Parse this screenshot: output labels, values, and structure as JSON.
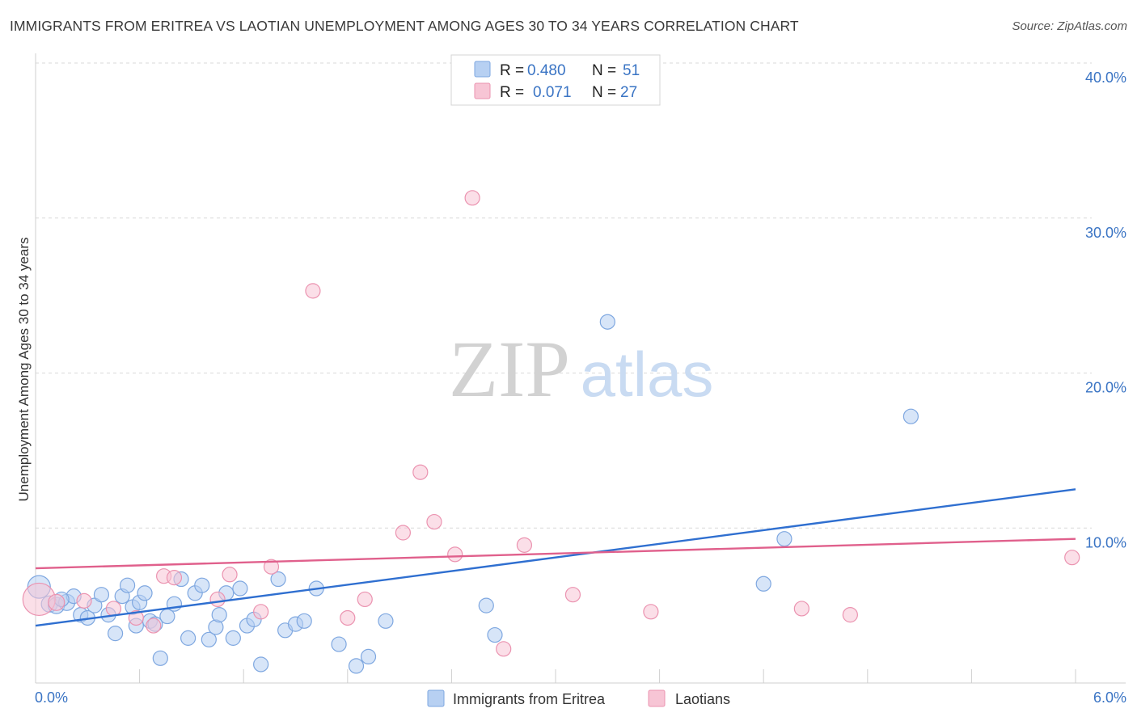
{
  "header": {
    "title": "IMMIGRANTS FROM ERITREA VS LAOTIAN UNEMPLOYMENT AMONG AGES 30 TO 34 YEARS CORRELATION CHART",
    "source": "Source: ZipAtlas.com"
  },
  "watermark": {
    "zip": "ZIP",
    "atlas": "atlas"
  },
  "colors": {
    "blue_fill": "#b7d0f2",
    "blue_stroke": "#7ea7e0",
    "blue_line": "#2f6fd0",
    "pink_fill": "#f7c5d5",
    "pink_stroke": "#eb93b0",
    "pink_line": "#e0608c",
    "tick_text": "#3a74c4",
    "grid": "#d9d9d9"
  },
  "legend": {
    "rows": [
      {
        "r_label": "R = ",
        "r_value": "0.480",
        "n_label": "N = ",
        "n_value": "51",
        "color": "blue"
      },
      {
        "r_label": "R = ",
        "r_value": "0.071",
        "n_label": "N = ",
        "n_value": "27",
        "color": "pink"
      }
    ]
  },
  "bottom_legend": [
    "Immigrants from Eritrea",
    "Laotians"
  ],
  "chart_data": {
    "type": "scatter",
    "title": "IMMIGRANTS FROM ERITREA VS LAOTIAN UNEMPLOYMENT AMONG AGES 30 TO 34 YEARS CORRELATION CHART",
    "xlabel": "",
    "ylabel": "Unemployment Among Ages 30 to 34 years",
    "xlim": [
      0,
      6
    ],
    "ylim": [
      0,
      40
    ],
    "x_tick_labels": [
      "0.0%",
      "6.0%"
    ],
    "y_ticks": [
      10,
      20,
      30,
      40
    ],
    "y_tick_labels": [
      "10.0%",
      "20.0%",
      "30.0%",
      "40.0%"
    ],
    "grid": true,
    "legend_position": "top-center",
    "series": [
      {
        "name": "Immigrants from Eritrea",
        "color": "blue",
        "trend": {
          "x": [
            0.0,
            6.0
          ],
          "y": [
            3.7,
            12.5
          ]
        },
        "points": [
          {
            "x": 0.02,
            "y": 6.2,
            "size": 14
          },
          {
            "x": 0.08,
            "y": 5.1,
            "size": 10
          },
          {
            "x": 0.12,
            "y": 5.0,
            "size": 10
          },
          {
            "x": 0.18,
            "y": 5.2,
            "size": 10
          },
          {
            "x": 0.22,
            "y": 5.6,
            "size": 9
          },
          {
            "x": 0.26,
            "y": 4.4,
            "size": 9
          },
          {
            "x": 0.3,
            "y": 4.2,
            "size": 9
          },
          {
            "x": 0.34,
            "y": 5.0,
            "size": 9
          },
          {
            "x": 0.38,
            "y": 5.7,
            "size": 9
          },
          {
            "x": 0.42,
            "y": 4.4,
            "size": 9
          },
          {
            "x": 0.46,
            "y": 3.2,
            "size": 9
          },
          {
            "x": 0.5,
            "y": 5.6,
            "size": 9
          },
          {
            "x": 0.53,
            "y": 6.3,
            "size": 9
          },
          {
            "x": 0.56,
            "y": 4.9,
            "size": 9
          },
          {
            "x": 0.6,
            "y": 5.2,
            "size": 9
          },
          {
            "x": 0.63,
            "y": 5.8,
            "size": 9
          },
          {
            "x": 0.66,
            "y": 4.0,
            "size": 9
          },
          {
            "x": 0.69,
            "y": 3.8,
            "size": 9
          },
          {
            "x": 0.72,
            "y": 1.6,
            "size": 9
          },
          {
            "x": 0.76,
            "y": 4.3,
            "size": 9
          },
          {
            "x": 0.8,
            "y": 5.1,
            "size": 9
          },
          {
            "x": 0.84,
            "y": 6.7,
            "size": 9
          },
          {
            "x": 0.88,
            "y": 2.9,
            "size": 9
          },
          {
            "x": 0.92,
            "y": 5.8,
            "size": 9
          },
          {
            "x": 0.96,
            "y": 6.3,
            "size": 9
          },
          {
            "x": 1.0,
            "y": 2.8,
            "size": 9
          },
          {
            "x": 1.04,
            "y": 3.6,
            "size": 9
          },
          {
            "x": 1.06,
            "y": 4.4,
            "size": 9
          },
          {
            "x": 1.1,
            "y": 5.8,
            "size": 9
          },
          {
            "x": 1.14,
            "y": 2.9,
            "size": 9
          },
          {
            "x": 1.18,
            "y": 6.1,
            "size": 9
          },
          {
            "x": 1.22,
            "y": 3.7,
            "size": 9
          },
          {
            "x": 1.26,
            "y": 4.1,
            "size": 9
          },
          {
            "x": 1.3,
            "y": 1.2,
            "size": 9
          },
          {
            "x": 1.4,
            "y": 6.7,
            "size": 9
          },
          {
            "x": 1.44,
            "y": 3.4,
            "size": 9
          },
          {
            "x": 1.5,
            "y": 3.8,
            "size": 9
          },
          {
            "x": 1.55,
            "y": 4.0,
            "size": 9
          },
          {
            "x": 1.62,
            "y": 6.1,
            "size": 9
          },
          {
            "x": 1.75,
            "y": 2.5,
            "size": 9
          },
          {
            "x": 1.85,
            "y": 1.1,
            "size": 9
          },
          {
            "x": 1.92,
            "y": 1.7,
            "size": 9
          },
          {
            "x": 2.02,
            "y": 4.0,
            "size": 9
          },
          {
            "x": 2.6,
            "y": 5.0,
            "size": 9
          },
          {
            "x": 2.65,
            "y": 3.1,
            "size": 9
          },
          {
            "x": 3.3,
            "y": 23.3,
            "size": 9
          },
          {
            "x": 4.2,
            "y": 6.4,
            "size": 9
          },
          {
            "x": 4.32,
            "y": 9.3,
            "size": 9
          },
          {
            "x": 5.05,
            "y": 17.2,
            "size": 9
          },
          {
            "x": 0.15,
            "y": 5.4,
            "size": 9
          },
          {
            "x": 0.58,
            "y": 3.7,
            "size": 9
          }
        ]
      },
      {
        "name": "Laotians",
        "color": "pink",
        "trend": {
          "x": [
            0.0,
            6.0
          ],
          "y": [
            7.4,
            9.3
          ]
        },
        "points": [
          {
            "x": 0.02,
            "y": 5.4,
            "size": 20
          },
          {
            "x": 0.12,
            "y": 5.2,
            "size": 10
          },
          {
            "x": 0.28,
            "y": 5.3,
            "size": 9
          },
          {
            "x": 0.45,
            "y": 4.8,
            "size": 9
          },
          {
            "x": 0.58,
            "y": 4.2,
            "size": 9
          },
          {
            "x": 0.68,
            "y": 3.7,
            "size": 9
          },
          {
            "x": 0.74,
            "y": 6.9,
            "size": 9
          },
          {
            "x": 0.8,
            "y": 6.8,
            "size": 9
          },
          {
            "x": 1.05,
            "y": 5.4,
            "size": 9
          },
          {
            "x": 1.12,
            "y": 7.0,
            "size": 9
          },
          {
            "x": 1.3,
            "y": 4.6,
            "size": 9
          },
          {
            "x": 1.36,
            "y": 7.5,
            "size": 9
          },
          {
            "x": 1.6,
            "y": 25.3,
            "size": 9
          },
          {
            "x": 1.8,
            "y": 4.2,
            "size": 9
          },
          {
            "x": 1.9,
            "y": 5.4,
            "size": 9
          },
          {
            "x": 2.12,
            "y": 9.7,
            "size": 9
          },
          {
            "x": 2.22,
            "y": 13.6,
            "size": 9
          },
          {
            "x": 2.3,
            "y": 10.4,
            "size": 9
          },
          {
            "x": 2.42,
            "y": 8.3,
            "size": 9
          },
          {
            "x": 2.52,
            "y": 31.3,
            "size": 9
          },
          {
            "x": 2.7,
            "y": 2.2,
            "size": 9
          },
          {
            "x": 2.82,
            "y": 8.9,
            "size": 9
          },
          {
            "x": 3.1,
            "y": 5.7,
            "size": 9
          },
          {
            "x": 3.55,
            "y": 4.6,
            "size": 9
          },
          {
            "x": 4.42,
            "y": 4.8,
            "size": 9
          },
          {
            "x": 4.7,
            "y": 4.4,
            "size": 9
          },
          {
            "x": 5.98,
            "y": 8.1,
            "size": 9
          }
        ]
      }
    ]
  }
}
